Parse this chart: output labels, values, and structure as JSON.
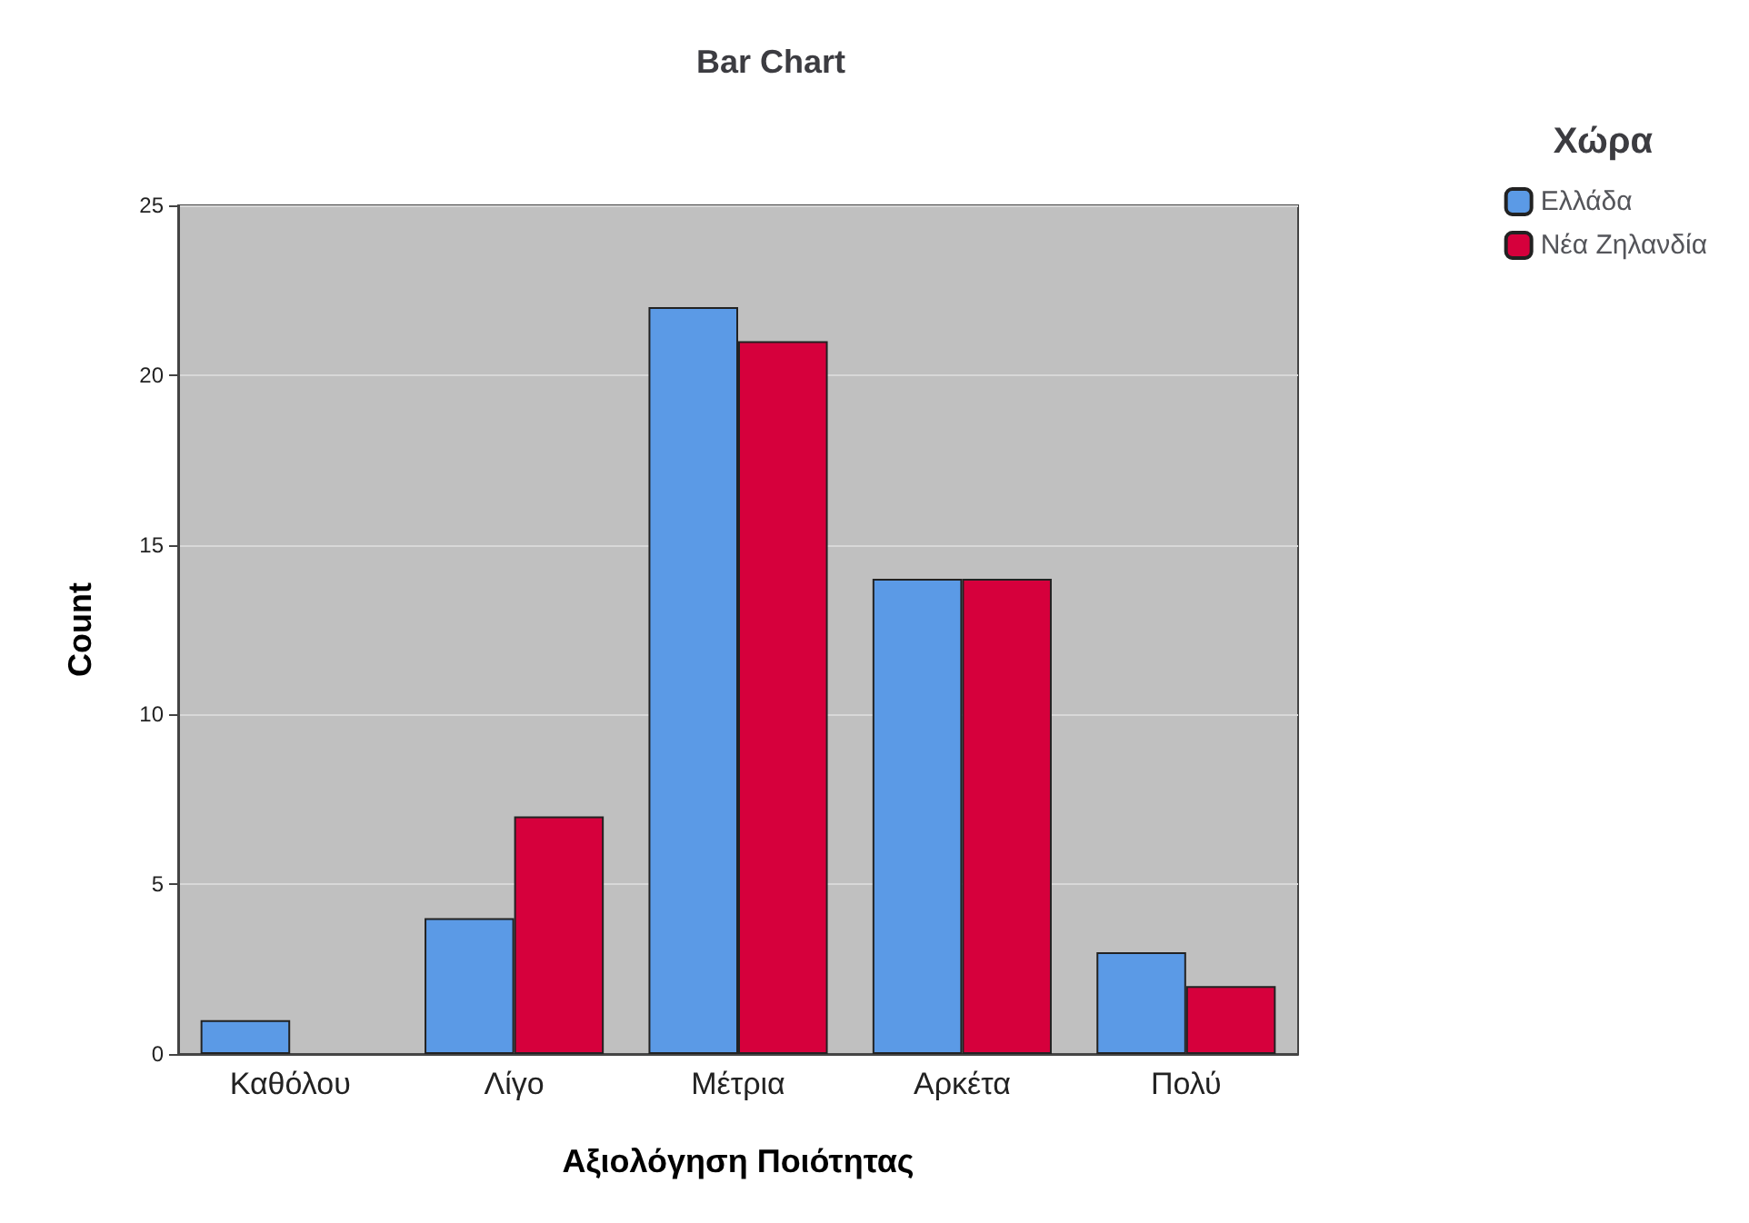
{
  "chart_data": {
    "type": "bar",
    "title": "Bar Chart",
    "xlabel": "Αξιολόγηση Ποιότητας",
    "ylabel": "Count",
    "legend_title": "Χώρα",
    "categories": [
      "Καθόλου",
      "Λίγο",
      "Μέτρια",
      "Αρκέτα",
      "Πολύ"
    ],
    "series": [
      {
        "name": "Ελλάδα",
        "color": "#5b9ae6",
        "values": [
          1,
          4,
          22,
          14,
          3
        ]
      },
      {
        "name": "Νέα Ζηλανδία",
        "color": "#d6003c",
        "values": [
          null,
          7,
          21,
          14,
          2
        ]
      }
    ],
    "ylim": [
      0,
      25
    ],
    "yticks": [
      0,
      5,
      10,
      15,
      20,
      25
    ],
    "grid": "y",
    "legend": "top right"
  }
}
